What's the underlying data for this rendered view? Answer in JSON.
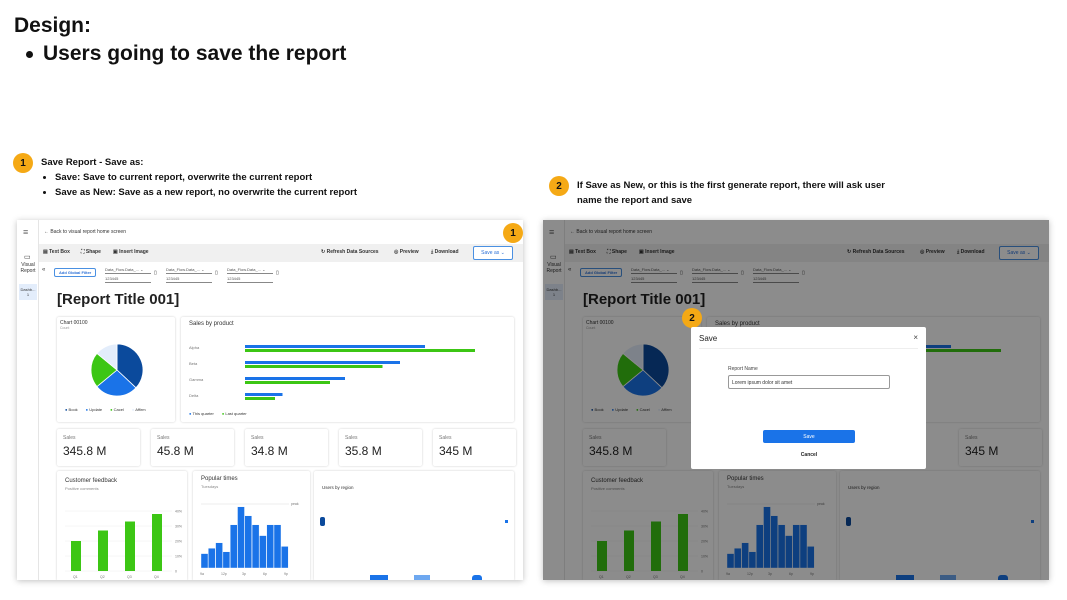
{
  "heading": {
    "title": "Design:",
    "bullet": "Users going to save the report"
  },
  "step1": {
    "num": "1",
    "title": "Save Report - Save as:",
    "items": [
      "Save: Save to current report, overwrite the current report",
      "Save as New: Save as a new report, no overwrite the current report"
    ]
  },
  "step2": {
    "num": "2",
    "text": "If Save as New, or this is the first generate report, there will ask user name the report and save"
  },
  "app": {
    "sidebar": {
      "menu_icon": "hamburger-icon",
      "visual_report": "Visual Report",
      "dashboard": "Dashb... 1"
    },
    "back": "Back to visual report home screen",
    "toolbar": {
      "text_box": "Text Box",
      "shape": "Shape",
      "insert_image": "Insert Image",
      "refresh": "Refresh Data Sources",
      "preview": "Preview",
      "download": "Download",
      "save_as": "Save as"
    },
    "add_filter": "Add Global Filter",
    "filters": [
      {
        "name": "Data_Flow.Data_...",
        "value": "123445"
      },
      {
        "name": "Data_Flow.Data_...",
        "value": "123445"
      },
      {
        "name": "Data_Flow.Data_...",
        "value": "123445"
      }
    ],
    "report_title": "[Report Title 001]",
    "pie": {
      "title": "Chart 00100",
      "subtitle": "Count",
      "slices": [
        {
          "label": "Book",
          "value": 37,
          "color": "#0b4a9c"
        },
        {
          "label": "Update",
          "value": 27,
          "color": "#1a73e8"
        },
        {
          "label": "Cacel",
          "value": 22,
          "color": "#3cc614"
        },
        {
          "label": "Affirm",
          "value": 14,
          "color": "#e3edfb"
        }
      ]
    },
    "bars": {
      "title": "Sales by product",
      "categories": [
        "Alpha",
        "Beta",
        "Gamma",
        "Delta"
      ],
      "series": [
        {
          "name": "This quarter",
          "color": "#1a73e8",
          "values": [
            72,
            62,
            40,
            15
          ]
        },
        {
          "name": "Last quarter",
          "color": "#3cc614",
          "values": [
            92,
            55,
            34,
            12
          ]
        }
      ]
    },
    "sales": [
      {
        "label": "Sales",
        "value": "345.8 M"
      },
      {
        "label": "Sales",
        "value": "45.8 M"
      },
      {
        "label": "Sales",
        "value": "34.8 M"
      },
      {
        "label": "Sales",
        "value": "35.8 M"
      },
      {
        "label": "Sales",
        "value": "345 M"
      }
    ],
    "feedback": {
      "title": "Customer feedback",
      "subtitle": "Positive comments",
      "categories": [
        "Q1",
        "Q2",
        "Q3",
        "Q4"
      ],
      "values": [
        20,
        27,
        33,
        38
      ],
      "yticks": [
        "40%",
        "30%",
        "20%",
        "10%",
        "0"
      ]
    },
    "popular": {
      "title": "Popular times",
      "subtitle": "Tuesdays",
      "peak": "peak",
      "values": [
        8,
        11,
        14,
        9,
        24,
        34,
        29,
        24,
        18,
        24,
        24,
        12
      ],
      "xticks": [
        "9a",
        "12p",
        "3p",
        "6p",
        "9p"
      ]
    },
    "region": {
      "title": "Users by region"
    }
  },
  "dialog": {
    "title": "Save",
    "close": "×",
    "label": "Report Name",
    "value": "Lorem ipsum dolor sit amet",
    "save": "Save",
    "cancel": "Cancel"
  }
}
